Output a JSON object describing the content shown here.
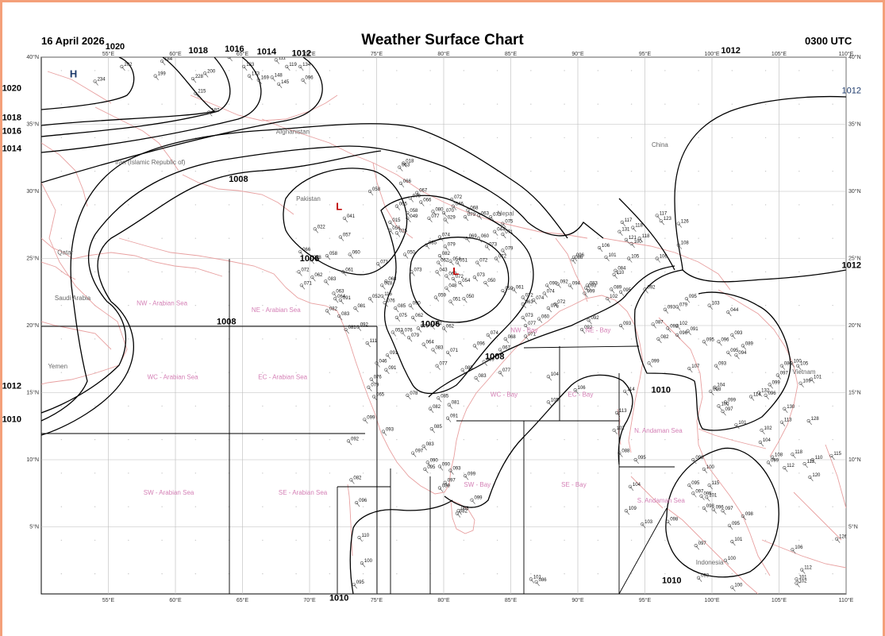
{
  "header": {
    "title": "Weather Surface Chart",
    "date": "16 April 2026",
    "time": "0300 UTC"
  },
  "map": {
    "lon_min": 50,
    "lon_max": 110,
    "lat_min": 0,
    "lat_max": 40,
    "lon_ticks": [
      "55°E",
      "60°E",
      "65°E",
      "70°E",
      "75°E",
      "80°E",
      "85°E",
      "90°E",
      "95°E",
      "100°E",
      "105°E",
      "110°E"
    ],
    "lat_ticks": [
      "5°N",
      "10°N",
      "15°N",
      "20°N",
      "25°N",
      "30°N",
      "35°N",
      "40°N"
    ],
    "colors": {
      "coast": "#e8a0a0",
      "isobar": "#000000",
      "grid": "#bbbbbb",
      "region": "#d47fb5"
    }
  },
  "countries": [
    {
      "name": "Afghanistan",
      "lon": 67.5,
      "lat": 34.3
    },
    {
      "name": "Iran (Islamic Republic of)",
      "lon": 55.5,
      "lat": 32.0
    },
    {
      "name": "Pakistan",
      "lon": 69.0,
      "lat": 29.3
    },
    {
      "name": "Nepal",
      "lon": 84.0,
      "lat": 28.2
    },
    {
      "name": "China",
      "lon": 95.5,
      "lat": 33.3
    },
    {
      "name": "Qatar",
      "lon": 51.2,
      "lat": 25.3
    },
    {
      "name": "Saudi Arabia",
      "lon": 51.0,
      "lat": 21.9
    },
    {
      "name": "Yemen",
      "lon": 50.5,
      "lat": 16.8
    },
    {
      "name": "Vietnam",
      "lon": 106.0,
      "lat": 16.4
    },
    {
      "name": "Indonesia",
      "lon": 98.8,
      "lat": 2.2
    }
  ],
  "regions": [
    {
      "name": "NW - Arabian Sea",
      "lon": 59.0,
      "lat": 21.5
    },
    {
      "name": "NE - Arabian Sea",
      "lon": 67.5,
      "lat": 21.0
    },
    {
      "name": "WC - Arabian Sea",
      "lon": 59.8,
      "lat": 16.0
    },
    {
      "name": "EC - Arabian Sea",
      "lon": 68.0,
      "lat": 16.0
    },
    {
      "name": "SW - Arabian Sea",
      "lon": 59.5,
      "lat": 7.4
    },
    {
      "name": "SE - Arabian Sea",
      "lon": 69.5,
      "lat": 7.4
    },
    {
      "name": "NW - Bay",
      "lon": 86.0,
      "lat": 19.5
    },
    {
      "name": "NE - Bay",
      "lon": 91.5,
      "lat": 19.5
    },
    {
      "name": "WC - Bay",
      "lon": 84.5,
      "lat": 14.7
    },
    {
      "name": "EC - Bay",
      "lon": 90.2,
      "lat": 14.7
    },
    {
      "name": "SW - Bay",
      "lon": 82.5,
      "lat": 8.0
    },
    {
      "name": "SE - Bay",
      "lon": 89.7,
      "lat": 8.0
    },
    {
      "name": "N. Andaman Sea",
      "lon": 96.0,
      "lat": 12.0
    },
    {
      "name": "S. Andaman Sea",
      "lon": 96.2,
      "lat": 6.8
    }
  ],
  "pressure_centers": [
    {
      "type": "H",
      "lon": 52.4,
      "lat": 38.5,
      "color": "#1d3a6b"
    },
    {
      "type": "L",
      "lon": 72.2,
      "lat": 28.6,
      "color": "#c00000"
    },
    {
      "type": "L",
      "lon": 80.9,
      "lat": 23.8,
      "color": "#c00000"
    }
  ],
  "isobar_labels": [
    {
      "text": "1020",
      "lon": 55.5,
      "lat": 40.6
    },
    {
      "text": "1018",
      "lon": 61.7,
      "lat": 40.3
    },
    {
      "text": "1016",
      "lon": 64.4,
      "lat": 40.4
    },
    {
      "text": "1014",
      "lon": 66.8,
      "lat": 40.2
    },
    {
      "text": "1012",
      "lon": 69.4,
      "lat": 40.1
    },
    {
      "text": "1012",
      "lon": 101.4,
      "lat": 40.3
    },
    {
      "text": "1020",
      "lon": 47.8,
      "lat": 37.5
    },
    {
      "text": "1018",
      "lon": 47.8,
      "lat": 35.3
    },
    {
      "text": "1016",
      "lon": 47.8,
      "lat": 34.3
    },
    {
      "text": "1014",
      "lon": 47.8,
      "lat": 33.0
    },
    {
      "text": "1008",
      "lon": 64.7,
      "lat": 30.7
    },
    {
      "text": "1006",
      "lon": 70.0,
      "lat": 24.8
    },
    {
      "text": "1008",
      "lon": 63.8,
      "lat": 20.1
    },
    {
      "text": "1006",
      "lon": 79.0,
      "lat": 19.9
    },
    {
      "text": "1008",
      "lon": 83.8,
      "lat": 17.5
    },
    {
      "text": "1010",
      "lon": 96.2,
      "lat": 15.0
    },
    {
      "text": "1012",
      "lon": 47.8,
      "lat": 15.3
    },
    {
      "text": "1010",
      "lon": 47.8,
      "lat": 12.8
    },
    {
      "text": "1010",
      "lon": 72.2,
      "lat": -0.5
    },
    {
      "text": "1010",
      "lon": 97.0,
      "lat": 0.8
    },
    {
      "text": "1012",
      "lon": 110.4,
      "lat": 24.3
    }
  ],
  "isobar_labels_blue": [
    {
      "text": "1012",
      "lon": 110.4,
      "lat": 37.3
    }
  ],
  "obs": [
    [
      "184",
      59,
      39.7
    ],
    [
      "202",
      56,
      39.3
    ],
    [
      "199",
      58.5,
      38.6
    ],
    [
      "234",
      54,
      38.2
    ],
    [
      "228",
      61.3,
      38.4
    ],
    [
      "200",
      62.2,
      38.8
    ],
    [
      "215",
      61.5,
      37.3
    ],
    [
      "197",
      62.5,
      35.9
    ],
    [
      "185",
      64,
      40
    ],
    [
      "183",
      65.1,
      39.3
    ],
    [
      "173",
      65.5,
      38.6
    ],
    [
      "169",
      66.2,
      38.3
    ],
    [
      "148",
      67.2,
      38.5
    ],
    [
      "145",
      67.7,
      38.0
    ],
    [
      "134",
      69.3,
      39.3
    ],
    [
      "119",
      68.3,
      39.3
    ],
    [
      "111",
      67.5,
      39.8
    ],
    [
      "096",
      69.5,
      38.3
    ],
    [
      "018",
      77,
      32.1
    ],
    [
      "063",
      76.7,
      31.8
    ],
    [
      "066",
      76.8,
      30.6
    ],
    [
      "058",
      74.5,
      30.0
    ],
    [
      "067",
      78,
      29.9
    ],
    [
      "070",
      77.5,
      29.5
    ],
    [
      "041",
      72.6,
      28.0
    ],
    [
      "022",
      70.4,
      27.2
    ],
    [
      "057",
      72.3,
      26.6
    ],
    [
      "015",
      76,
      27.7
    ],
    [
      "025",
      76.5,
      26.9
    ],
    [
      "056",
      76,
      27.1
    ],
    [
      "049",
      77.3,
      28.0
    ],
    [
      "065",
      76.5,
      28.9
    ],
    [
      "058",
      77.3,
      28.4
    ],
    [
      "066",
      78.3,
      29.2
    ],
    [
      "080",
      79.2,
      28.5
    ],
    [
      "077",
      78.9,
      28.0
    ],
    [
      "070",
      80,
      28.4
    ],
    [
      "029",
      80.1,
      27.9
    ],
    [
      "072",
      80.6,
      29.4
    ],
    [
      "046",
      80.7,
      28.9
    ],
    [
      "068",
      81.8,
      28.6
    ],
    [
      "079",
      81.6,
      28.1
    ],
    [
      "063",
      82.6,
      28.2
    ],
    [
      "073",
      83.5,
      28.1
    ],
    [
      "075",
      84.4,
      27.6
    ],
    [
      "044",
      83.8,
      27.0
    ],
    [
      "071",
      84.4,
      26.8
    ],
    [
      "085",
      78.7,
      26.0
    ],
    [
      "074",
      79.7,
      26.6
    ],
    [
      "079",
      80.1,
      25.9
    ],
    [
      "069",
      81.7,
      26.5
    ],
    [
      "060",
      82.6,
      26.5
    ],
    [
      "073",
      83.2,
      25.9
    ],
    [
      "079",
      84.4,
      25.6
    ],
    [
      "082",
      79.7,
      25.2
    ],
    [
      "062",
      79.6,
      24.7
    ],
    [
      "054",
      80.5,
      24.8
    ],
    [
      "051",
      81,
      24.7
    ],
    [
      "072",
      82.5,
      24.7
    ],
    [
      "072",
      83.9,
      25.0
    ],
    [
      "066",
      69.3,
      25.5
    ],
    [
      "068",
      70.1,
      24.9
    ],
    [
      "058",
      71.3,
      25.2
    ],
    [
      "060",
      73,
      25.3
    ],
    [
      "061",
      72.5,
      24.0
    ],
    [
      "072",
      69.2,
      24.0
    ],
    [
      "062",
      70.2,
      23.6
    ],
    [
      "071",
      69.4,
      23.0
    ],
    [
      "083",
      71.2,
      23.3
    ],
    [
      "071",
      75.1,
      24.6
    ],
    [
      "068",
      75.7,
      23.3
    ],
    [
      "050",
      77.1,
      25.3
    ],
    [
      "073",
      77.6,
      24.0
    ],
    [
      "043",
      79.5,
      24.0
    ],
    [
      "048",
      80.2,
      22.8
    ],
    [
      "059",
      79.4,
      22.1
    ],
    [
      "060",
      80.2,
      23.7
    ],
    [
      "072",
      80.7,
      23.5
    ],
    [
      "054",
      81.2,
      23.2
    ],
    [
      "050",
      81.5,
      22.0
    ],
    [
      "051",
      80.5,
      21.8
    ],
    [
      "073",
      82.3,
      23.6
    ],
    [
      "050",
      83.1,
      23.2
    ],
    [
      "078",
      75.4,
      23.0
    ],
    [
      "116",
      75.4,
      22.2
    ],
    [
      "076",
      75.6,
      21.7
    ],
    [
      "085",
      76.4,
      21.3
    ],
    [
      "090",
      77.5,
      21.5
    ],
    [
      "062",
      77.7,
      20.6
    ],
    [
      "075",
      76.5,
      20.6
    ],
    [
      "070",
      78.1,
      19.8
    ],
    [
      "062",
      79.1,
      20.0
    ],
    [
      "063",
      71.8,
      22.4
    ],
    [
      "064",
      71.9,
      22.0
    ],
    [
      "091",
      72.3,
      21.9
    ],
    [
      "081",
      73.4,
      21.3
    ],
    [
      "052",
      74.5,
      22.0
    ],
    [
      "082",
      71.3,
      21.1
    ],
    [
      "083",
      72.2,
      20.7
    ],
    [
      "081",
      72.7,
      19.7
    ],
    [
      "092",
      73.6,
      19.9
    ],
    [
      "053",
      76.2,
      19.5
    ],
    [
      "076",
      76.9,
      19.5
    ],
    [
      "079",
      77.4,
      19.1
    ],
    [
      "064",
      78.5,
      18.6
    ],
    [
      "083",
      79.2,
      18.2
    ],
    [
      "077",
      79.5,
      17.0
    ],
    [
      "071",
      80.3,
      18.0
    ],
    [
      "062",
      80,
      19.8
    ],
    [
      "074",
      83.3,
      19.3
    ],
    [
      "067",
      84.2,
      18.2
    ],
    [
      "068",
      84.6,
      19.0
    ],
    [
      "096",
      82.3,
      18.5
    ],
    [
      "085",
      81.4,
      16.7
    ],
    [
      "083",
      82.4,
      16.1
    ],
    [
      "069",
      83.0,
      17.3
    ],
    [
      "077",
      84.2,
      16.5
    ],
    [
      "091",
      75.7,
      16.7
    ],
    [
      "091",
      75.8,
      17.8
    ],
    [
      "111",
      74.3,
      18.7
    ],
    [
      "046",
      75,
      17.2
    ],
    [
      "076",
      74.6,
      16.0
    ],
    [
      "079",
      74.4,
      15.4
    ],
    [
      "065",
      74.8,
      14.7
    ],
    [
      "078",
      77.3,
      14.8
    ],
    [
      "085",
      79.6,
      14.6
    ],
    [
      "081",
      80.4,
      14.1
    ],
    [
      "082",
      79,
      13.8
    ],
    [
      "091",
      80.3,
      13.1
    ],
    [
      "099",
      74.1,
      13.0
    ],
    [
      "093",
      75.5,
      12.1
    ],
    [
      "085",
      79.1,
      12.3
    ],
    [
      "083",
      78.5,
      11.0
    ],
    [
      "097",
      77.7,
      10.5
    ],
    [
      "090",
      78.8,
      9.8
    ],
    [
      "095",
      78.6,
      9.3
    ],
    [
      "090",
      79.7,
      9.5
    ],
    [
      "093",
      80.5,
      9.2
    ],
    [
      "097",
      80.1,
      8.3
    ],
    [
      "089",
      79.7,
      7.9
    ],
    [
      "099",
      81.6,
      8.8
    ],
    [
      "099",
      82.1,
      7.0
    ],
    [
      "088",
      81.1,
      6.2
    ],
    [
      "082",
      81.0,
      6.0
    ],
    [
      "092",
      72.9,
      11.4
    ],
    [
      "082",
      73.1,
      8.5
    ],
    [
      "096",
      73.5,
      6.8
    ],
    [
      "110",
      73.7,
      4.2
    ],
    [
      "100",
      73.9,
      2.3
    ],
    [
      "095",
      73.3,
      0.7
    ],
    [
      "059",
      84.4,
      22.6
    ],
    [
      "061",
      85.2,
      22.7
    ],
    [
      "072",
      85.9,
      22.1
    ],
    [
      "063",
      85.9,
      21.6
    ],
    [
      "073",
      85.9,
      20.6
    ],
    [
      "077",
      86.1,
      20.0
    ],
    [
      "071",
      86.1,
      19.2
    ],
    [
      "074",
      86.7,
      21.9
    ],
    [
      "074",
      87.5,
      22.4
    ],
    [
      "075",
      87.8,
      21.3
    ],
    [
      "072",
      88.3,
      21.6
    ],
    [
      "060",
      87.1,
      20.5
    ],
    [
      "090",
      87.7,
      23.0
    ],
    [
      "092",
      88.5,
      23.1
    ],
    [
      "094",
      89.4,
      23.0
    ],
    [
      "093",
      90.6,
      22.8
    ],
    [
      "083",
      90.7,
      23.0
    ],
    [
      "099",
      90.5,
      22.4
    ],
    [
      "102",
      92.2,
      22.0
    ],
    [
      "089",
      92.5,
      22.7
    ],
    [
      "095",
      93.2,
      22.5
    ],
    [
      "084",
      92.8,
      24.1
    ],
    [
      "110",
      92.7,
      23.8
    ],
    [
      "106",
      91.6,
      25.8
    ],
    [
      "101",
      92.1,
      25.1
    ],
    [
      "105",
      93.8,
      25.0
    ],
    [
      "118",
      94.1,
      27.3
    ],
    [
      "117",
      93.3,
      27.7
    ],
    [
      "086",
      89.6,
      24.9
    ],
    [
      "096",
      89.7,
      25.1
    ],
    [
      "100",
      94.0,
      26.1
    ],
    [
      "092",
      90.8,
      20.4
    ],
    [
      "093",
      93.2,
      20.0
    ],
    [
      "092",
      90.3,
      19.7
    ],
    [
      "114",
      93.5,
      15.1
    ],
    [
      "113",
      92.9,
      13.5
    ],
    [
      "102",
      92.7,
      12.2
    ],
    [
      "088",
      93.1,
      10.5
    ],
    [
      "095",
      94.3,
      10.0
    ],
    [
      "104",
      93.9,
      8.0
    ],
    [
      "109",
      93.6,
      6.2
    ],
    [
      "103",
      94.8,
      5.2
    ],
    [
      "117",
      95.9,
      28.2
    ],
    [
      "123",
      96.2,
      27.8
    ],
    [
      "126",
      97.5,
      27.6
    ],
    [
      "108",
      97.5,
      26.0
    ],
    [
      "106",
      95.9,
      25.0
    ],
    [
      "118",
      94.6,
      26.5
    ],
    [
      "121",
      93.6,
      26.4
    ],
    [
      "131",
      93.1,
      27.0
    ],
    [
      "092",
      95.0,
      22.7
    ],
    [
      "093",
      96.5,
      21.2
    ],
    [
      "079",
      97.4,
      21.4
    ],
    [
      "095",
      98.1,
      22.0
    ],
    [
      "092",
      96.7,
      19.8
    ],
    [
      "102",
      97.4,
      20.0
    ],
    [
      "087",
      95.6,
      20.1
    ],
    [
      "082",
      96.0,
      19.0
    ],
    [
      "096",
      97.4,
      19.3
    ],
    [
      "091",
      98.2,
      19.6
    ],
    [
      "095",
      99.4,
      18.8
    ],
    [
      "099",
      95.3,
      17.2
    ],
    [
      "107",
      98.3,
      16.8
    ],
    [
      "044",
      101.2,
      21.0
    ],
    [
      "103",
      99.8,
      21.5
    ],
    [
      "093",
      101.5,
      19.3
    ],
    [
      "089",
      102.3,
      18.5
    ],
    [
      "094",
      101.8,
      17.8
    ],
    [
      "096",
      100.5,
      18.8
    ],
    [
      "095",
      101.2,
      18.0
    ],
    [
      "093",
      100.3,
      17.0
    ],
    [
      "104",
      100.2,
      15.4
    ],
    [
      "098",
      99.9,
      15.1
    ],
    [
      "100",
      100.5,
      14.0
    ],
    [
      "101",
      101.8,
      12.6
    ],
    [
      "102",
      103.7,
      12.2
    ],
    [
      "104",
      103.6,
      11.3
    ],
    [
      "099",
      101.0,
      14.3
    ],
    [
      "097",
      100.8,
      13.6
    ],
    [
      "100",
      105.9,
      17.2
    ],
    [
      "105",
      106.4,
      17.0
    ],
    [
      "101",
      107.4,
      16.0
    ],
    [
      "109",
      106.6,
      15.7
    ],
    [
      "086",
      105.2,
      17.0
    ],
    [
      "097",
      104.9,
      16.3
    ],
    [
      "099",
      104.3,
      15.6
    ],
    [
      "096",
      104.0,
      14.8
    ],
    [
      "132",
      103.5,
      15.0
    ],
    [
      "114",
      102.9,
      14.7
    ],
    [
      "130",
      105.4,
      13.8
    ],
    [
      "113",
      105.2,
      12.8
    ],
    [
      "128",
      107.2,
      12.9
    ],
    [
      "110",
      107.5,
      10.0
    ],
    [
      "111",
      106.9,
      9.7
    ],
    [
      "115",
      108.9,
      10.3
    ],
    [
      "118",
      106.0,
      10.4
    ],
    [
      "108",
      104.5,
      10.2
    ],
    [
      "099",
      104.2,
      9.8
    ],
    [
      "112",
      105.4,
      9.4
    ],
    [
      "120",
      107.3,
      8.7
    ],
    [
      "098",
      98.6,
      10.0
    ],
    [
      "100",
      99.4,
      9.3
    ],
    [
      "095",
      98.3,
      8.1
    ],
    [
      "115",
      99.8,
      8.1
    ],
    [
      "097",
      98.6,
      7.5
    ],
    [
      "095",
      99.2,
      7.3
    ],
    [
      "101",
      99.6,
      7.2
    ],
    [
      "096",
      100.1,
      6.3
    ],
    [
      "097",
      100.8,
      6.2
    ],
    [
      "098",
      102.3,
      5.8
    ],
    [
      "098",
      96.7,
      5.4
    ],
    [
      "098",
      99.4,
      6.4
    ],
    [
      "095",
      101.3,
      5.1
    ],
    [
      "101",
      101.5,
      3.9
    ],
    [
      "097",
      98.8,
      3.6
    ],
    [
      "100",
      101.0,
      2.5
    ],
    [
      "093",
      99.0,
      1.2
    ],
    [
      "100",
      101.5,
      0.5
    ],
    [
      "106",
      106.0,
      3.3
    ],
    [
      "101",
      106.3,
      1.1
    ],
    [
      "102",
      106.3,
      0.8
    ],
    [
      "112",
      106.7,
      1.8
    ],
    [
      "126",
      109.3,
      4.1
    ],
    [
      "101",
      86.5,
      1.1
    ],
    [
      "086",
      86.9,
      0.9
    ],
    [
      "104",
      87.8,
      16.2
    ],
    [
      "106",
      89.8,
      15.2
    ],
    [
      "105",
      87.8,
      14.3
    ]
  ],
  "chart_data": {
    "type": "table",
    "title": "Weather Surface Chart",
    "date": "16 April 2026",
    "time": "0300 UTC"
  }
}
